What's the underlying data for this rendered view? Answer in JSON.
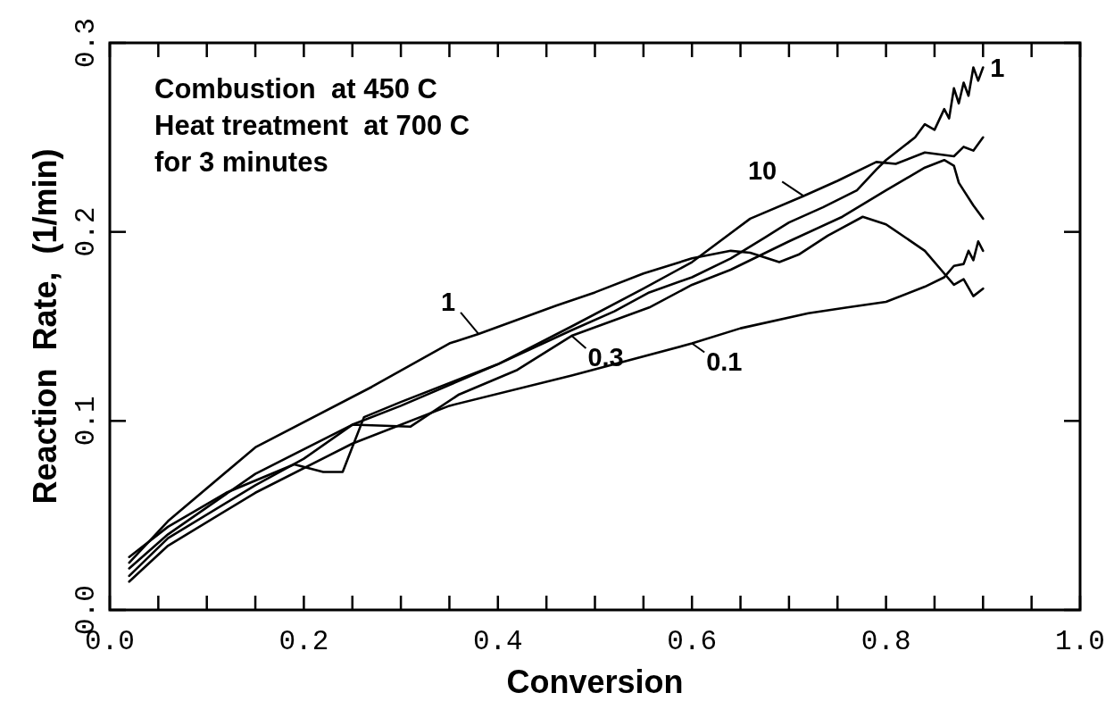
{
  "chart_data": {
    "type": "line",
    "xlabel": "Conversion",
    "ylabel": "Reaction  Rate,  (1/min)",
    "annotations": [
      "Combustion  at 450 C",
      "Heat treatment  at 700 C",
      "for 3 minutes"
    ],
    "xlim": [
      0,
      1
    ],
    "ylim": [
      0,
      0.3
    ],
    "xticks": [
      {
        "value": 0,
        "label": "0.0"
      },
      {
        "value": 0.05,
        "label": null
      },
      {
        "value": 0.1,
        "label": null
      },
      {
        "value": 0.15,
        "label": null
      },
      {
        "value": 0.2,
        "label": "0.2"
      },
      {
        "value": 0.25,
        "label": null
      },
      {
        "value": 0.3,
        "label": null
      },
      {
        "value": 0.35,
        "label": null
      },
      {
        "value": 0.4,
        "label": "0.4"
      },
      {
        "value": 0.45,
        "label": null
      },
      {
        "value": 0.5,
        "label": null
      },
      {
        "value": 0.55,
        "label": null
      },
      {
        "value": 0.6,
        "label": "0.6"
      },
      {
        "value": 0.65,
        "label": null
      },
      {
        "value": 0.7,
        "label": null
      },
      {
        "value": 0.75,
        "label": null
      },
      {
        "value": 0.8,
        "label": "0.8"
      },
      {
        "value": 0.85,
        "label": null
      },
      {
        "value": 0.9,
        "label": null
      },
      {
        "value": 0.95,
        "label": null
      },
      {
        "value": 1,
        "label": "1.0"
      }
    ],
    "yticks": [
      {
        "value": 0,
        "label": "0.0"
      },
      {
        "value": 0.1,
        "label": "0.1"
      },
      {
        "value": 0.2,
        "label": "0.2"
      },
      {
        "value": 0.3,
        "label": "0.3"
      }
    ],
    "grid": false,
    "legend": "top right",
    "marker": "none",
    "line_style": "solid",
    "series": [
      {
        "name": "1",
        "color": "#000000",
        "x": [
          0.02,
          0.06,
          0.12,
          0.19,
          0.22,
          0.24,
          0.262,
          0.3,
          0.4,
          0.476,
          0.52,
          0.556,
          0.6,
          0.64,
          0.675,
          0.7,
          0.735,
          0.77,
          0.79,
          0.8,
          0.82,
          0.83,
          0.84,
          0.85,
          0.86,
          0.865,
          0.87,
          0.875,
          0.88,
          0.885,
          0.89,
          0.895,
          0.9
        ],
        "values": [
          0.028,
          0.044,
          0.062,
          0.077,
          0.073,
          0.073,
          0.102,
          0.11,
          0.13,
          0.148,
          0.158,
          0.168,
          0.176,
          0.186,
          0.197,
          0.205,
          0.213,
          0.222,
          0.233,
          0.238,
          0.246,
          0.25,
          0.257,
          0.254,
          0.265,
          0.26,
          0.276,
          0.268,
          0.279,
          0.272,
          0.287,
          0.28,
          0.287
        ]
      },
      {
        "name": "10",
        "color": "#000000",
        "x": [
          0.02,
          0.06,
          0.15,
          0.25,
          0.3,
          0.4,
          0.476,
          0.55,
          0.6,
          0.66,
          0.715,
          0.75,
          0.79,
          0.81,
          0.84,
          0.87,
          0.88,
          0.89,
          0.9
        ],
        "values": [
          0.022,
          0.04,
          0.072,
          0.098,
          0.108,
          0.13,
          0.15,
          0.17,
          0.184,
          0.207,
          0.219,
          0.227,
          0.237,
          0.236,
          0.242,
          0.24,
          0.245,
          0.243,
          0.25
        ]
      },
      {
        "name": "1",
        "color": "#000000",
        "x": [
          0.02,
          0.06,
          0.15,
          0.27,
          0.35,
          0.38,
          0.46,
          0.5,
          0.55,
          0.6,
          0.64,
          0.66,
          0.69,
          0.71,
          0.74,
          0.776,
          0.8,
          0.82,
          0.84,
          0.86,
          0.87,
          0.88,
          0.89,
          0.9
        ],
        "values": [
          0.025,
          0.047,
          0.086,
          0.118,
          0.141,
          0.146,
          0.161,
          0.168,
          0.178,
          0.186,
          0.19,
          0.189,
          0.184,
          0.188,
          0.198,
          0.208,
          0.204,
          0.197,
          0.19,
          0.178,
          0.172,
          0.175,
          0.166,
          0.17
        ]
      },
      {
        "name": "0.3",
        "color": "#000000",
        "x": [
          0.02,
          0.06,
          0.15,
          0.2,
          0.25,
          0.31,
          0.36,
          0.42,
          0.476,
          0.556,
          0.6,
          0.64,
          0.7,
          0.755,
          0.8,
          0.84,
          0.86,
          0.87,
          0.875,
          0.88,
          0.89,
          0.9
        ],
        "values": [
          0.018,
          0.038,
          0.066,
          0.08,
          0.098,
          0.097,
          0.114,
          0.127,
          0.145,
          0.16,
          0.172,
          0.18,
          0.195,
          0.208,
          0.222,
          0.234,
          0.238,
          0.235,
          0.226,
          0.222,
          0.214,
          0.207
        ]
      },
      {
        "name": "0.1",
        "color": "#000000",
        "x": [
          0.02,
          0.06,
          0.15,
          0.25,
          0.35,
          0.476,
          0.6,
          0.65,
          0.72,
          0.76,
          0.8,
          0.84,
          0.86,
          0.87,
          0.88,
          0.885,
          0.89,
          0.895,
          0.9
        ],
        "values": [
          0.015,
          0.034,
          0.062,
          0.088,
          0.108,
          0.124,
          0.141,
          0.149,
          0.157,
          0.16,
          0.163,
          0.171,
          0.176,
          0.182,
          0.183,
          0.19,
          0.185,
          0.195,
          0.19
        ]
      }
    ]
  }
}
